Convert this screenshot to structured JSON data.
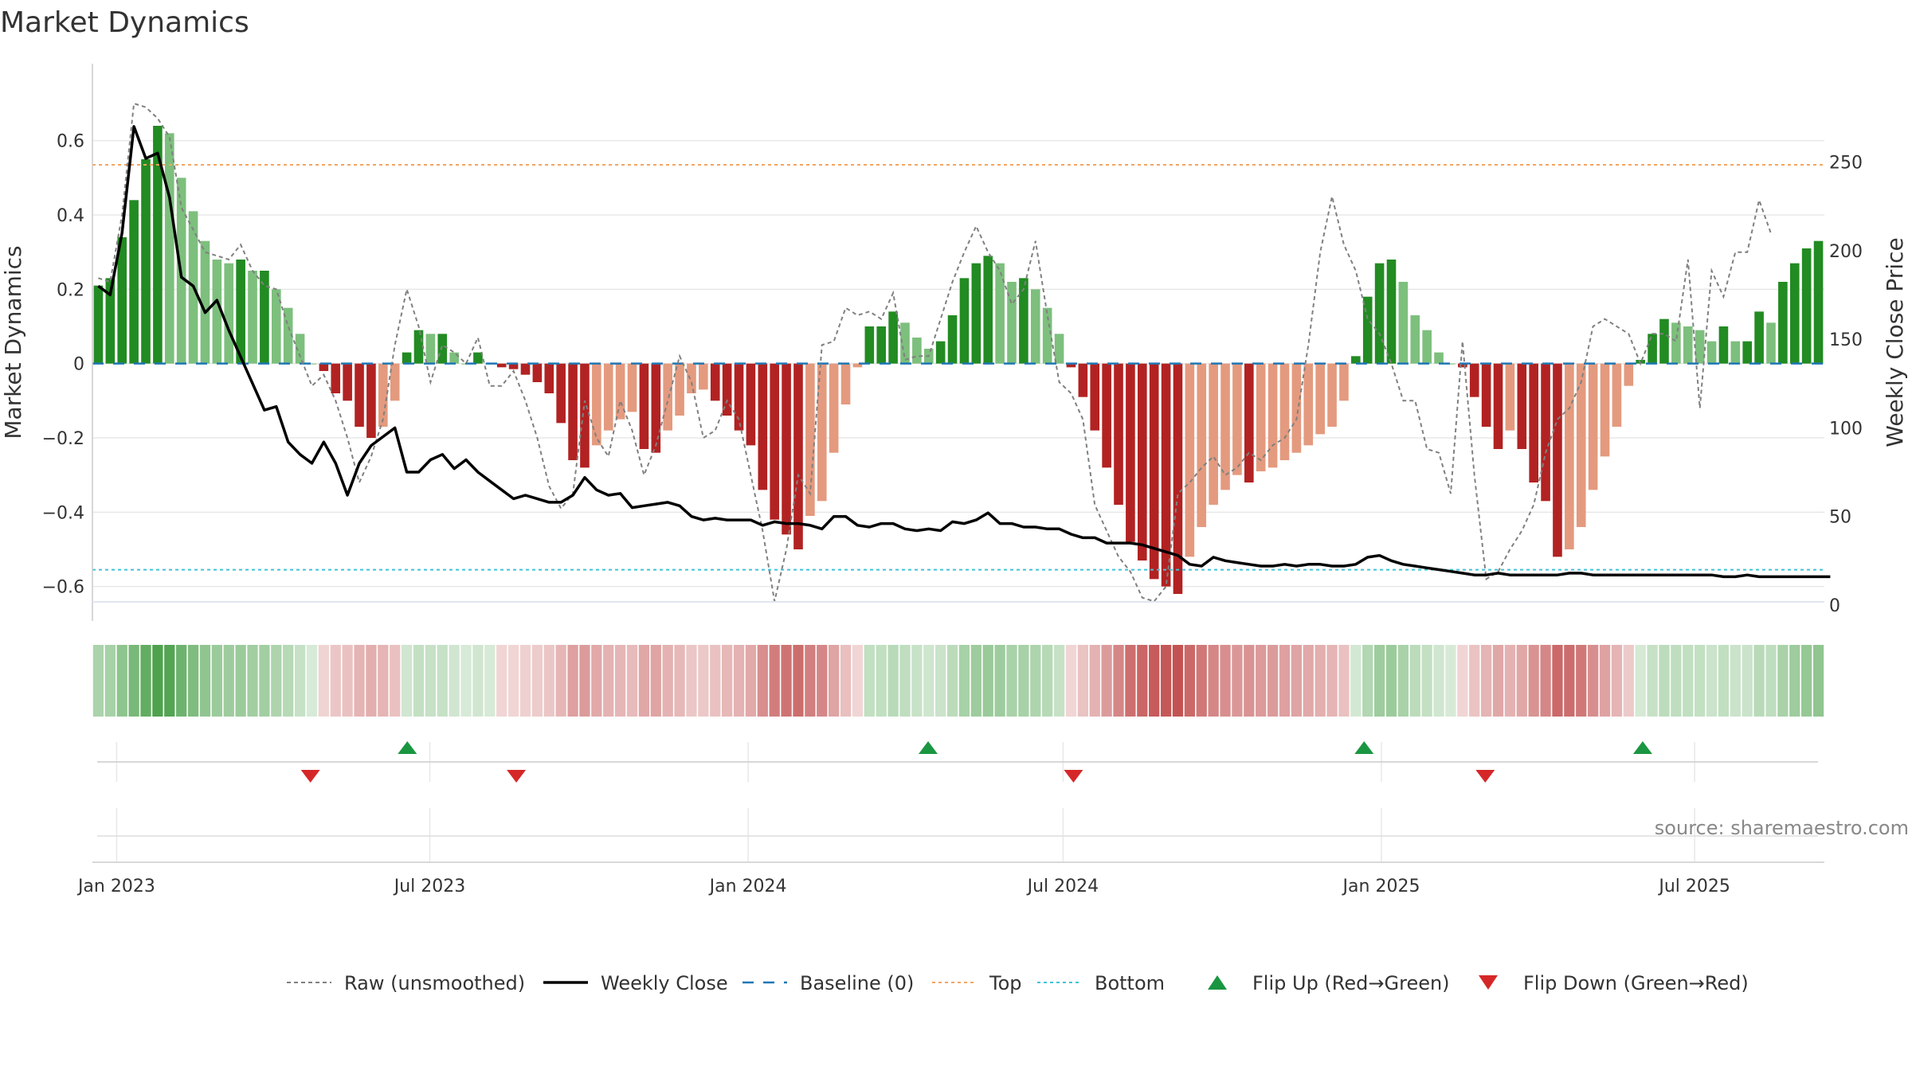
{
  "chart_data": {
    "type": "bar",
    "title": "Market Dynamics",
    "ylabel_left": "Market Dynamics",
    "ylabel_right": "Weekly Close Price",
    "source": "source: sharemaestro.com",
    "x_start": "2022-12-18",
    "x_end": "2025-09-14",
    "bar_interval_days": 7,
    "x_ticks": [
      {
        "date": "2023-01-01",
        "label": "Jan 2023"
      },
      {
        "date": "2023-07-01",
        "label": "Jul 2023"
      },
      {
        "date": "2024-01-01",
        "label": "Jan 2024"
      },
      {
        "date": "2024-07-01",
        "label": "Jul 2024"
      },
      {
        "date": "2025-01-01",
        "label": "Jan 2025"
      },
      {
        "date": "2025-07-01",
        "label": "Jul 2025"
      }
    ],
    "y_left": {
      "range": [
        -0.65,
        0.7
      ],
      "ticks": [
        -0.6,
        -0.4,
        -0.2,
        0,
        0.2,
        0.4,
        0.6
      ],
      "tick_labels": [
        "−0.6",
        "−0.4",
        "−0.2",
        "0",
        "0.2",
        "0.4",
        "0.6"
      ]
    },
    "y_right": {
      "range": [
        0,
        283
      ],
      "ticks": [
        0,
        50,
        100,
        150,
        200,
        250
      ],
      "tick_labels": [
        "0",
        "50",
        "100",
        "150",
        "200",
        "250"
      ]
    },
    "top_level": 0.535,
    "bottom_level": -0.555,
    "baseline": 0,
    "bar_values": [
      0.21,
      0.23,
      0.34,
      0.44,
      0.55,
      0.64,
      0.62,
      0.5,
      0.41,
      0.33,
      0.28,
      0.27,
      0.28,
      0.25,
      0.25,
      0.2,
      0.15,
      0.08,
      0.0,
      -0.02,
      -0.08,
      -0.1,
      -0.17,
      -0.2,
      -0.17,
      -0.1,
      0.03,
      0.09,
      0.08,
      0.08,
      0.03,
      0.0,
      0.03,
      0.0,
      -0.01,
      -0.015,
      -0.03,
      -0.05,
      -0.08,
      -0.16,
      -0.26,
      -0.28,
      -0.22,
      -0.18,
      -0.15,
      -0.13,
      -0.23,
      -0.24,
      -0.18,
      -0.14,
      -0.08,
      -0.07,
      -0.1,
      -0.14,
      -0.18,
      -0.22,
      -0.34,
      -0.42,
      -0.46,
      -0.5,
      -0.41,
      -0.37,
      -0.24,
      -0.11,
      -0.01,
      0.1,
      0.1,
      0.14,
      0.11,
      0.07,
      0.04,
      0.06,
      0.13,
      0.23,
      0.27,
      0.29,
      0.27,
      0.22,
      0.23,
      0.2,
      0.15,
      0.08,
      -0.01,
      -0.09,
      -0.18,
      -0.28,
      -0.38,
      -0.48,
      -0.53,
      -0.58,
      -0.6,
      -0.62,
      -0.52,
      -0.44,
      -0.38,
      -0.34,
      -0.3,
      -0.32,
      -0.29,
      -0.28,
      -0.26,
      -0.24,
      -0.22,
      -0.19,
      -0.17,
      -0.1,
      0.02,
      0.18,
      0.27,
      0.28,
      0.22,
      0.13,
      0.09,
      0.03,
      0.0,
      -0.01,
      -0.09,
      -0.17,
      -0.23,
      -0.18,
      -0.23,
      -0.32,
      -0.37,
      -0.52,
      -0.5,
      -0.44,
      -0.34,
      -0.25,
      -0.17,
      -0.06,
      0.01,
      0.08,
      0.12,
      0.11,
      0.1,
      0.09,
      0.06,
      0.1,
      0.06,
      0.06,
      0.14,
      0.11,
      0.22,
      0.27,
      0.31,
      0.33
    ],
    "raw_values": [
      0.23,
      0.22,
      0.4,
      0.7,
      0.69,
      0.66,
      0.61,
      0.42,
      0.36,
      0.3,
      0.29,
      0.28,
      0.32,
      0.25,
      0.21,
      0.2,
      0.1,
      0.02,
      -0.06,
      -0.03,
      -0.1,
      -0.2,
      -0.32,
      -0.25,
      -0.15,
      0.05,
      0.2,
      0.1,
      -0.05,
      0.05,
      0.03,
      0.0,
      0.07,
      -0.06,
      -0.06,
      -0.02,
      -0.1,
      -0.2,
      -0.33,
      -0.39,
      -0.35,
      -0.1,
      -0.2,
      -0.25,
      -0.1,
      -0.18,
      -0.3,
      -0.22,
      -0.1,
      0.02,
      -0.05,
      -0.2,
      -0.18,
      -0.1,
      -0.15,
      -0.3,
      -0.45,
      -0.64,
      -0.5,
      -0.3,
      -0.35,
      0.05,
      0.06,
      0.15,
      0.13,
      0.14,
      0.12,
      0.19,
      0.01,
      0.02,
      0.02,
      0.12,
      0.22,
      0.3,
      0.37,
      0.3,
      0.25,
      0.16,
      0.2,
      0.33,
      0.13,
      -0.05,
      -0.08,
      -0.15,
      -0.38,
      -0.45,
      -0.52,
      -0.56,
      -0.63,
      -0.64,
      -0.6,
      -0.35,
      -0.32,
      -0.28,
      -0.25,
      -0.3,
      -0.28,
      -0.24,
      -0.26,
      -0.22,
      -0.2,
      -0.15,
      0.05,
      0.3,
      0.45,
      0.32,
      0.25,
      0.12,
      0.08,
      0.0,
      -0.1,
      -0.1,
      -0.23,
      -0.24,
      -0.35,
      0.06,
      -0.3,
      -0.58,
      -0.56,
      -0.5,
      -0.45,
      -0.38,
      -0.24,
      -0.15,
      -0.12,
      -0.05,
      0.1,
      0.12,
      0.1,
      0.08,
      0.0,
      0.08,
      0.08,
      0.06,
      0.28,
      -0.12,
      0.25,
      0.18,
      0.3,
      0.3,
      0.44,
      0.35
    ],
    "close_prices": [
      180,
      175,
      210,
      270,
      252,
      255,
      230,
      185,
      180,
      165,
      172,
      155,
      140,
      125,
      110,
      112,
      92,
      85,
      80,
      92,
      80,
      62,
      80,
      90,
      95,
      100,
      75,
      75,
      82,
      85,
      77,
      82,
      75,
      70,
      65,
      60,
      62,
      60,
      58,
      58,
      62,
      72,
      65,
      62,
      63,
      55,
      56,
      57,
      58,
      56,
      50,
      48,
      49,
      48,
      48,
      48,
      45,
      47,
      46,
      46,
      45,
      43,
      50,
      50,
      45,
      44,
      46,
      46,
      43,
      42,
      43,
      42,
      47,
      46,
      48,
      52,
      46,
      46,
      44,
      44,
      43,
      43,
      40,
      38,
      38,
      35,
      35,
      35,
      34,
      32,
      30,
      28,
      23,
      22,
      27,
      25,
      24,
      23,
      22,
      22,
      23,
      22,
      23,
      23,
      22,
      22,
      23,
      27,
      28,
      25,
      23,
      22,
      21,
      20,
      19,
      18,
      17,
      17,
      18,
      17,
      17,
      17,
      17,
      17,
      18,
      18,
      17,
      17,
      17,
      17,
      17,
      17,
      17,
      17,
      17,
      17,
      17,
      16,
      16,
      17,
      16,
      16,
      16,
      16,
      16,
      16,
      16
    ],
    "flip_up": [
      {
        "date": "2023-06-18",
        "label": "Flip Up (Red→Green)"
      },
      {
        "date": "2024-04-14",
        "label": "Flip Up (Red→Green)"
      },
      {
        "date": "2024-12-22",
        "label": "Flip Up (Red→Green)"
      },
      {
        "date": "2025-06-01",
        "label": "Flip Up (Red→Green)"
      }
    ],
    "flip_down": [
      {
        "date": "2023-04-23",
        "label": "Flip Down (Green→Red)"
      },
      {
        "date": "2023-08-20",
        "label": "Flip Down (Green→Red)"
      },
      {
        "date": "2024-07-07",
        "label": "Flip Down (Green→Red)"
      },
      {
        "date": "2025-03-02",
        "label": "Flip Down (Green→Red)"
      }
    ],
    "legend": {
      "placement": "bottom",
      "entries": [
        {
          "key": "raw",
          "label": "Raw (unsmoothed)"
        },
        {
          "key": "close",
          "label": "Weekly Close"
        },
        {
          "key": "baseline",
          "label": "Baseline (0)"
        },
        {
          "key": "top",
          "label": "Top"
        },
        {
          "key": "bottom",
          "label": "Bottom"
        },
        {
          "key": "flipup",
          "label": "Flip Up (Red→Green)"
        },
        {
          "key": "flipdown",
          "label": "Flip Down (Green→Red)"
        }
      ]
    },
    "colors": {
      "green_strong": "#228b22",
      "green_light": "#7dbf7d",
      "red_strong": "#b22222",
      "red_light": "#e49a7e",
      "raw": "#808080",
      "close": "#000000",
      "baseline": "#1f77b4",
      "top": "#f4a460",
      "bottom": "#40c4d8",
      "flip_up": "#1a9641",
      "flip_down": "#d62728",
      "grid": "#e8e8e8"
    },
    "grid": true
  }
}
